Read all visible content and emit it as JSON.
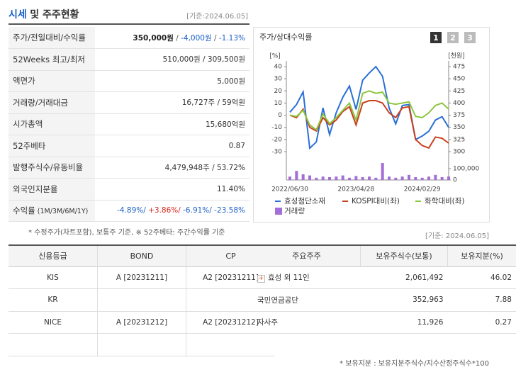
{
  "header": {
    "title": "시세",
    "title_rest": "및 주주현황",
    "date": "[기준:2024.06.05]"
  },
  "quote_table": {
    "rows": [
      {
        "label": "주가/전일대비/수익률",
        "parts": [
          {
            "text": "350,000원",
            "color": "#222222"
          },
          {
            "text": " / ",
            "color": "#555555"
          },
          {
            "text": "-4,000원",
            "color": "#1a5fc8"
          },
          {
            "text": " / ",
            "color": "#555555"
          },
          {
            "text": "-1.13%",
            "color": "#1a5fc8"
          }
        ]
      },
      {
        "label": "52Weeks 최고/최저",
        "value": "510,000원 / 309,500원"
      },
      {
        "label": "액면가",
        "value": "5,000원"
      },
      {
        "label": "거래량/거래대금",
        "value": "16,727주 / 59억원"
      },
      {
        "label": "시가총액",
        "value": "15,680억원"
      },
      {
        "label": "52주베타",
        "value": "0.87"
      },
      {
        "label": "발행주식수/유동비율",
        "value": "4,479,948주 / 53.72%"
      },
      {
        "label": "외국인지분율",
        "value": "11.40%"
      },
      {
        "label": "수익률",
        "sublabel": "(1M/3M/6M/1Y)",
        "parts": [
          {
            "text": "-4.89%/",
            "color": "#1a5fc8"
          },
          {
            "text": " +3.86%/",
            "color": "#d9241c"
          },
          {
            "text": " -6.91%/",
            "color": "#1a5fc8"
          },
          {
            "text": " -23.58%",
            "color": "#1a5fc8"
          }
        ]
      }
    ]
  },
  "footnote": "* 수정주가(차트포함), 보통주 기준, ※ 52주베타: 주간수익률 기준",
  "chart_data": {
    "type": "line",
    "title": "주가/상대수익률",
    "tabs": [
      "1",
      "2",
      "3"
    ],
    "categories": [
      "2022/06/30",
      null,
      null,
      null,
      null,
      null,
      null,
      null,
      null,
      null,
      "2023/04/28",
      null,
      null,
      null,
      null,
      null,
      null,
      null,
      null,
      null,
      "2024/02/29",
      null,
      null,
      null,
      null
    ],
    "ylim": [
      -30,
      40
    ],
    "yticks": [
      40,
      30,
      20,
      10,
      0,
      -10,
      -20,
      -30
    ],
    "ylabel": "[%]",
    "y2lim": [
      300,
      475
    ],
    "y2ticks": [
      475,
      450,
      425,
      400,
      375,
      350,
      325,
      300
    ],
    "y2label": "[천원]",
    "vol_lim": [
      0,
      150000
    ],
    "vol_ticks": [
      {
        "value": 100000,
        "label": "100,000"
      },
      0
    ],
    "series": [
      {
        "name": "효성첨단소재",
        "color": "#2a6fd6",
        "axis": "y2",
        "values": [
          381,
          397,
          423,
          307,
          320,
          390,
          335,
          380,
          412,
          435,
          387,
          447,
          462,
          475,
          455,
          390,
          357,
          395,
          397,
          325,
          332,
          342,
          365,
          372,
          350
        ]
      },
      {
        "name": "KOSPI대비(좌)",
        "color": "#c8401f",
        "values": [
          0,
          -2,
          5,
          -10,
          -13,
          -2,
          -8,
          -4,
          3,
          7,
          -8,
          10,
          12,
          12,
          10,
          2,
          -2,
          6,
          7,
          -20,
          -25,
          -27,
          -18,
          -19,
          -23
        ]
      },
      {
        "name": "화학대비(좌)",
        "color": "#8cc63f",
        "values": [
          0,
          -1,
          4,
          -8,
          -12,
          1,
          -7,
          -2,
          4,
          10,
          -4,
          18,
          20,
          18,
          19,
          10,
          9,
          10,
          11,
          -1,
          -2,
          2,
          8,
          10,
          5
        ]
      },
      {
        "name": "거래량",
        "color": "#a46ed8",
        "type": "bar",
        "values": [
          30000,
          80000,
          50000,
          40000,
          20000,
          30000,
          25000,
          30000,
          40000,
          20000,
          35000,
          25000,
          30000,
          20000,
          150000,
          30000,
          20000,
          30000,
          45000,
          25000,
          20000,
          30000,
          45000,
          25000,
          30000
        ]
      }
    ]
  },
  "rating_table": {
    "headers": [
      "신용등급",
      "BOND",
      "CP"
    ],
    "rows": [
      [
        "KIS",
        "A  [20231211]",
        "A2  [20231211]"
      ],
      [
        "KR",
        null,
        null
      ],
      [
        "NICE",
        "A  [20231212]",
        "A2  [20231212]"
      ],
      [
        null,
        null,
        null
      ]
    ]
  },
  "holders": {
    "date": "[기준: 2024.06.05]",
    "headers": [
      "주요주주",
      "보유주식수(보통)",
      "보유지분(%)"
    ],
    "rows": [
      [
        "효성 외 11인",
        "2,061,492",
        "46.02"
      ],
      [
        "국민연금공단",
        "352,963",
        "7.88"
      ],
      [
        "자사주",
        "11,926",
        "0.27"
      ]
    ],
    "footnote": "* 보유지분 : 보유지분주식수/지수산정주식수*100"
  }
}
